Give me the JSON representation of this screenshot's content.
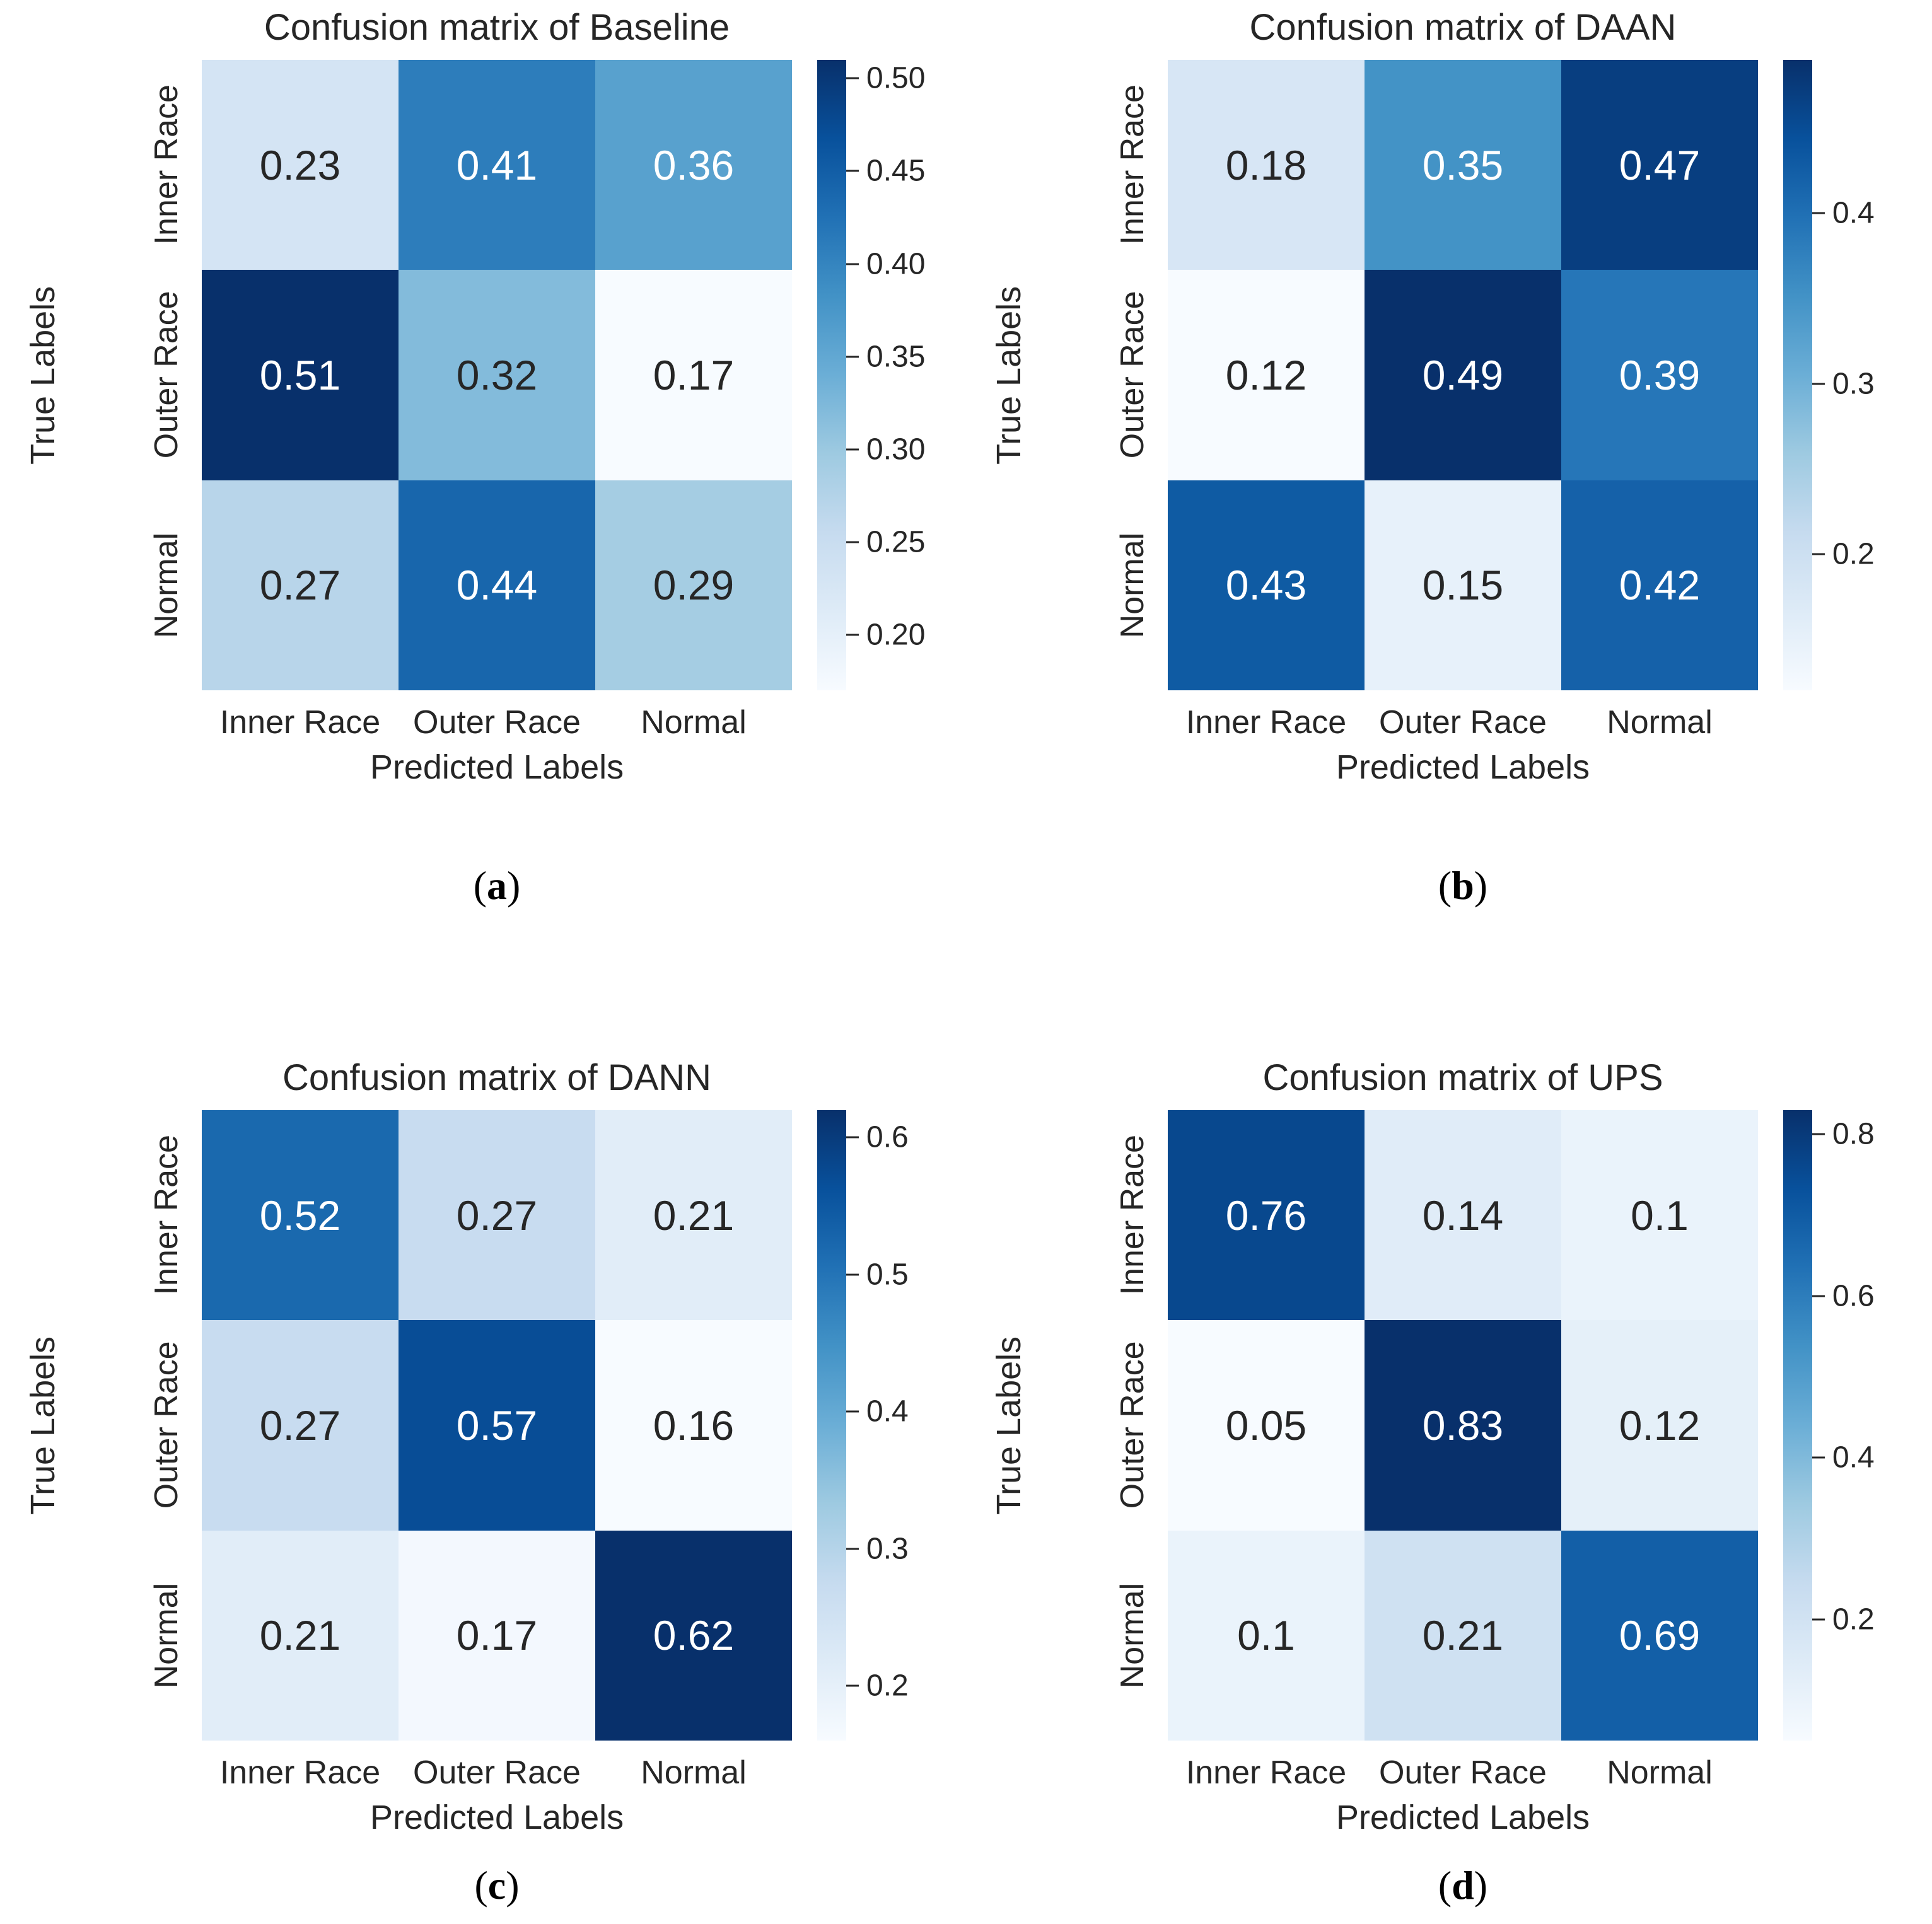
{
  "figure": {
    "background": "#ffffff",
    "text_color": "#262626"
  },
  "colormap": {
    "name": "Blues",
    "anchors": [
      "#f7fbff",
      "#deebf7",
      "#c6dbef",
      "#9ecae1",
      "#6baed6",
      "#4292c6",
      "#2171b5",
      "#08519c",
      "#08306b"
    ],
    "annotation_dark_text": "#262626",
    "annotation_light_text": "#ffffff",
    "luminance_threshold": 0.408
  },
  "chart_data": [
    {
      "type": "heatmap",
      "id": "a",
      "title": "Confusion matrix of Baseline",
      "caption": {
        "open": "(",
        "letter": "a",
        "close": ")"
      },
      "xlabel": "Predicted Labels",
      "ylabel": "True Labels",
      "x_categories": [
        "Inner Race",
        "Outer Race",
        "Normal"
      ],
      "y_categories": [
        "Inner Race",
        "Outer Race",
        "Normal"
      ],
      "values": [
        [
          0.23,
          0.41,
          0.36
        ],
        [
          0.51,
          0.32,
          0.17
        ],
        [
          0.27,
          0.44,
          0.29
        ]
      ],
      "cell_labels": [
        [
          "0.23",
          "0.41",
          "0.36"
        ],
        [
          "0.51",
          "0.32",
          "0.17"
        ],
        [
          "0.27",
          "0.44",
          "0.29"
        ]
      ],
      "vmin": 0.17,
      "vmax": 0.51,
      "colorbar_ticks": [
        {
          "label": "0.50",
          "value": 0.5
        },
        {
          "label": "0.45",
          "value": 0.45
        },
        {
          "label": "0.40",
          "value": 0.4
        },
        {
          "label": "0.35",
          "value": 0.35
        },
        {
          "label": "0.30",
          "value": 0.3
        },
        {
          "label": "0.25",
          "value": 0.25
        },
        {
          "label": "0.20",
          "value": 0.2
        }
      ]
    },
    {
      "type": "heatmap",
      "id": "b",
      "title": "Confusion matrix of DAAN",
      "caption": {
        "open": "(",
        "letter": "b",
        "close": ")"
      },
      "xlabel": "Predicted Labels",
      "ylabel": "True Labels",
      "x_categories": [
        "Inner Race",
        "Outer Race",
        "Normal"
      ],
      "y_categories": [
        "Inner Race",
        "Outer Race",
        "Normal"
      ],
      "values": [
        [
          0.18,
          0.35,
          0.47
        ],
        [
          0.12,
          0.49,
          0.39
        ],
        [
          0.43,
          0.15,
          0.42
        ]
      ],
      "cell_labels": [
        [
          "0.18",
          "0.35",
          "0.47"
        ],
        [
          "0.12",
          "0.49",
          "0.39"
        ],
        [
          "0.43",
          "0.15",
          "0.42"
        ]
      ],
      "vmin": 0.12,
      "vmax": 0.49,
      "colorbar_ticks": [
        {
          "label": "0.4",
          "value": 0.4
        },
        {
          "label": "0.3",
          "value": 0.3
        },
        {
          "label": "0.2",
          "value": 0.2
        }
      ]
    },
    {
      "type": "heatmap",
      "id": "c",
      "title": "Confusion matrix of DANN",
      "caption": {
        "open": "(",
        "letter": "c",
        "close": ")"
      },
      "xlabel": "Predicted Labels",
      "ylabel": "True Labels",
      "x_categories": [
        "Inner Race",
        "Outer Race",
        "Normal"
      ],
      "y_categories": [
        "Inner Race",
        "Outer Race",
        "Normal"
      ],
      "values": [
        [
          0.52,
          0.27,
          0.21
        ],
        [
          0.27,
          0.57,
          0.16
        ],
        [
          0.21,
          0.17,
          0.62
        ]
      ],
      "cell_labels": [
        [
          "0.52",
          "0.27",
          "0.21"
        ],
        [
          "0.27",
          "0.57",
          "0.16"
        ],
        [
          "0.21",
          "0.17",
          "0.62"
        ]
      ],
      "vmin": 0.16,
      "vmax": 0.62,
      "colorbar_ticks": [
        {
          "label": "0.6",
          "value": 0.6
        },
        {
          "label": "0.5",
          "value": 0.5
        },
        {
          "label": "0.4",
          "value": 0.4
        },
        {
          "label": "0.3",
          "value": 0.3
        },
        {
          "label": "0.2",
          "value": 0.2
        }
      ]
    },
    {
      "type": "heatmap",
      "id": "d",
      "title": "Confusion matrix of UPS",
      "caption": {
        "open": "(",
        "letter": "d",
        "close": ")"
      },
      "xlabel": "Predicted Labels",
      "ylabel": "True Labels",
      "x_categories": [
        "Inner Race",
        "Outer Race",
        "Normal"
      ],
      "y_categories": [
        "Inner Race",
        "Outer Race",
        "Normal"
      ],
      "values": [
        [
          0.76,
          0.14,
          0.1
        ],
        [
          0.05,
          0.83,
          0.12
        ],
        [
          0.1,
          0.21,
          0.69
        ]
      ],
      "cell_labels": [
        [
          "0.76",
          "0.14",
          "0.1"
        ],
        [
          "0.05",
          "0.83",
          "0.12"
        ],
        [
          "0.1",
          "0.21",
          "0.69"
        ]
      ],
      "vmin": 0.05,
      "vmax": 0.83,
      "colorbar_ticks": [
        {
          "label": "0.8",
          "value": 0.8
        },
        {
          "label": "0.6",
          "value": 0.6
        },
        {
          "label": "0.4",
          "value": 0.4
        },
        {
          "label": "0.2",
          "value": 0.2
        }
      ]
    }
  ]
}
